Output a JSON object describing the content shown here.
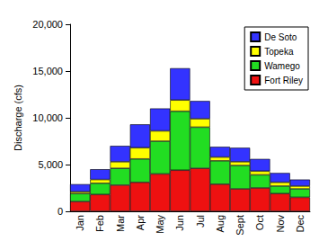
{
  "chart_data": {
    "type": "bar",
    "stacked": true,
    "grid": false,
    "legend": "top-right",
    "y_label": "Discharge (cfs)",
    "categories": [
      "Jan",
      "Feb",
      "Mar",
      "Apr",
      "May",
      "Jun",
      "Jul",
      "Aug",
      "Sept",
      "Oct",
      "Nov",
      "Dec"
    ],
    "series": [
      {
        "name": "Fort Riley",
        "color": "#ee1111",
        "values": [
          1050,
          1800,
          2800,
          3100,
          4000,
          4400,
          4600,
          2900,
          2400,
          2500,
          1900,
          1500
        ]
      },
      {
        "name": "Wamego",
        "color": "#22dd22",
        "values": [
          850,
          1200,
          1800,
          2500,
          3500,
          6300,
          4400,
          2500,
          2500,
          1400,
          800,
          900
        ]
      },
      {
        "name": "Topeka",
        "color": "#ffff00",
        "values": [
          200,
          400,
          700,
          1200,
          1100,
          1200,
          900,
          400,
          400,
          400,
          400,
          300
        ]
      },
      {
        "name": "De Soto",
        "color": "#3333ff",
        "values": [
          800,
          1100,
          1700,
          2500,
          2400,
          3400,
          1900,
          1100,
          1500,
          1300,
          1000,
          700
        ]
      }
    ],
    "ylim": [
      0,
      20000
    ],
    "yticks": [
      0,
      {
        "value": 5000,
        "label": "5,000"
      },
      {
        "value": 10000,
        "label": "10,000"
      },
      {
        "value": 15000,
        "label": "15,000"
      },
      {
        "value": 20000,
        "label": "20,000"
      }
    ]
  }
}
